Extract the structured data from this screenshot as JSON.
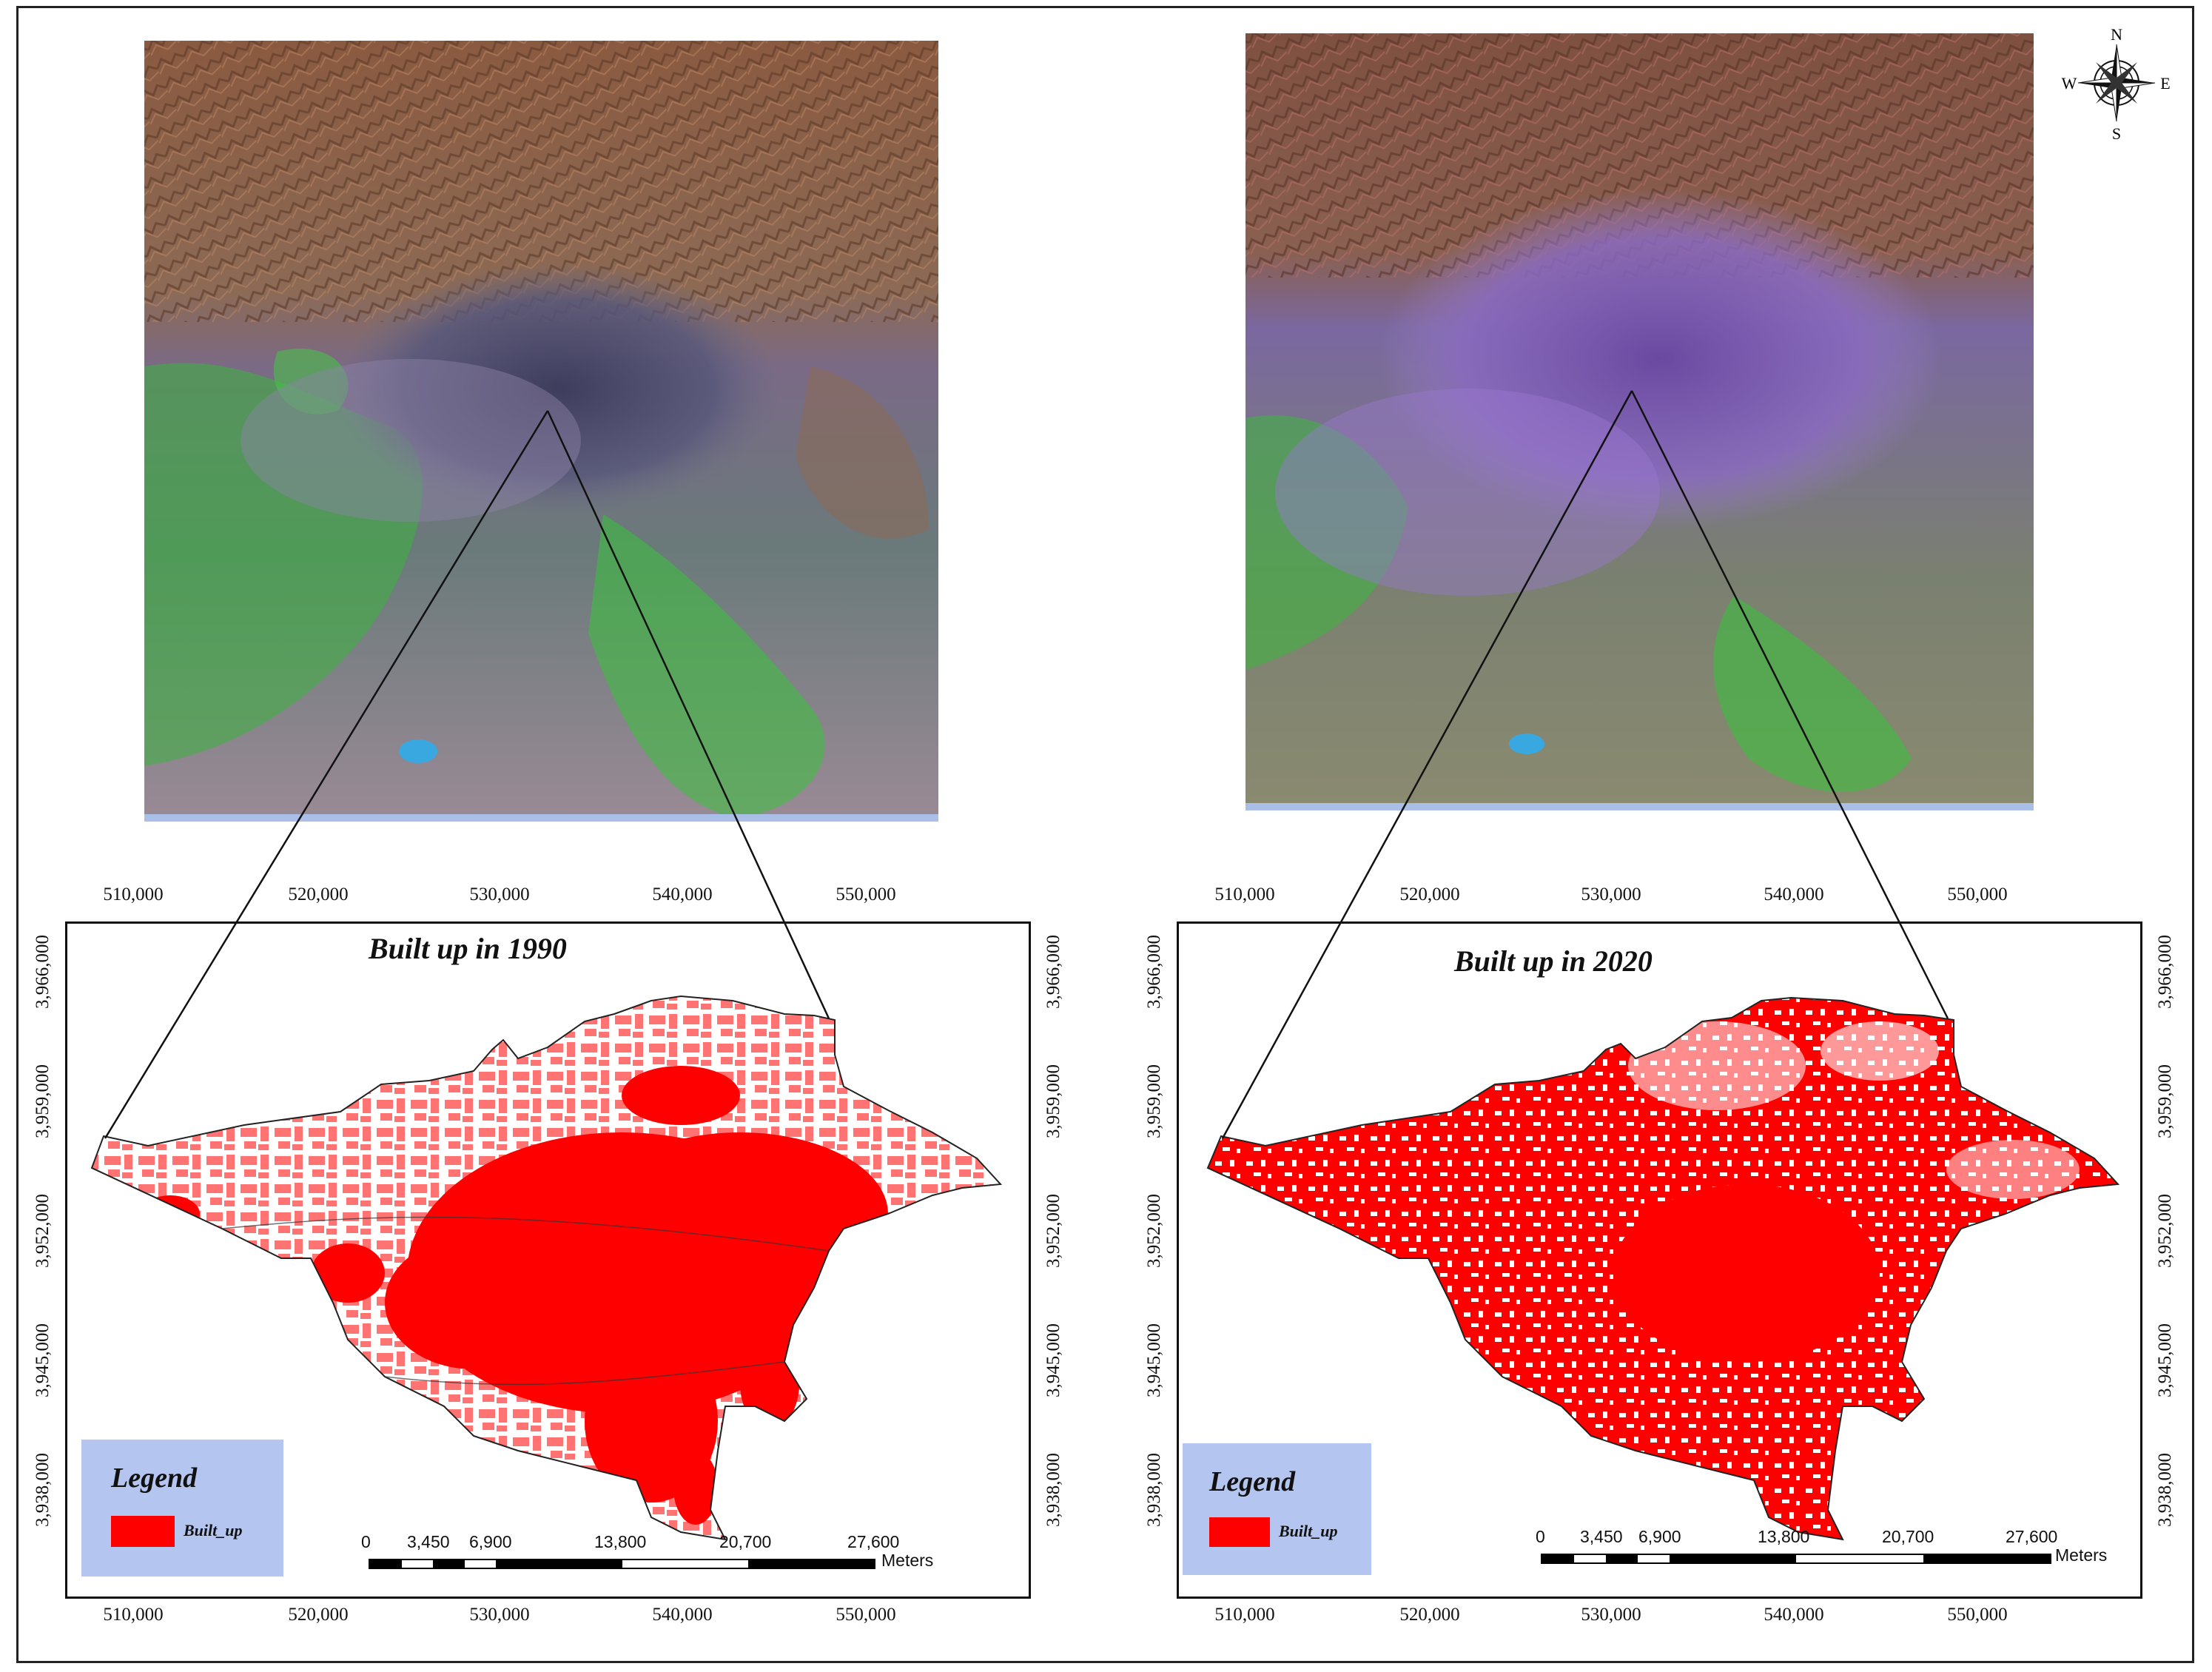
{
  "colors": {
    "built_up": "#ff0000",
    "legend_bg": "#b4c6f0",
    "urban_1990": "#4b4c72",
    "urban_2020": "#7e62b2",
    "vegetation": "#37c23c",
    "mountains": "#9a6a4c"
  },
  "north_arrow": {
    "n": "N",
    "s": "S",
    "e": "E",
    "w": "W",
    "icon": "compass-rose-icon"
  },
  "maps": [
    {
      "title": "Built up in 1990",
      "x_ticks": [
        "510,000",
        "520,000",
        "530,000",
        "540,000",
        "550,000"
      ],
      "y_ticks": [
        "3,966,000",
        "3,959,000",
        "3,952,000",
        "3,945,000",
        "3,938,000"
      ],
      "legend": {
        "title": "Legend",
        "label": "Built_up"
      },
      "scale_bar": {
        "labels": [
          "0",
          "3,450",
          "6,900",
          "13,800",
          "20,700",
          "27,600"
        ],
        "unit": "Meters"
      },
      "built_up_fraction": 0.45
    },
    {
      "title": "Built up in 2020",
      "x_ticks": [
        "510,000",
        "520,000",
        "530,000",
        "540,000",
        "550,000"
      ],
      "y_ticks": [
        "3,966,000",
        "3,959,000",
        "3,952,000",
        "3,945,000",
        "3,938,000"
      ],
      "legend": {
        "title": "Legend",
        "label": "Built_up"
      },
      "scale_bar": {
        "labels": [
          "0",
          "3,450",
          "6,900",
          "13,800",
          "20,700",
          "27,600"
        ],
        "unit": "Meters"
      },
      "built_up_fraction": 0.75
    }
  ]
}
